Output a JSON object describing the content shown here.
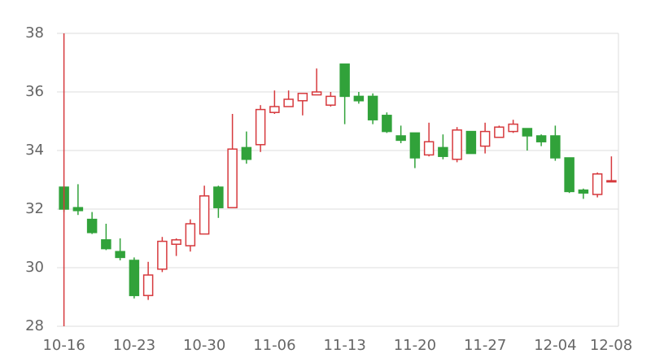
{
  "chart_data": {
    "type": "candlestick",
    "categories": [
      "10-16",
      null,
      null,
      null,
      null,
      "10-23",
      null,
      null,
      null,
      null,
      "10-30",
      null,
      null,
      null,
      null,
      "11-06",
      null,
      null,
      null,
      null,
      "11-13",
      null,
      null,
      null,
      null,
      "11-20",
      null,
      null,
      null,
      null,
      "11-27",
      null,
      null,
      null,
      null,
      "12-04",
      null,
      null,
      null,
      "12-08"
    ],
    "open": [
      32.75,
      32.05,
      31.65,
      30.95,
      30.55,
      30.25,
      29.05,
      29.95,
      30.8,
      30.75,
      31.15,
      32.75,
      32.05,
      34.1,
      34.2,
      35.3,
      35.5,
      35.7,
      35.9,
      35.55,
      36.95,
      35.85,
      35.85,
      35.2,
      34.5,
      34.6,
      33.85,
      34.1,
      33.7,
      34.65,
      34.15,
      34.45,
      34.65,
      34.75,
      34.5,
      34.5,
      33.75,
      32.65,
      32.5,
      32.95
    ],
    "close": [
      32.0,
      31.95,
      31.2,
      30.65,
      30.35,
      29.05,
      29.75,
      30.9,
      30.95,
      31.5,
      32.45,
      32.05,
      34.05,
      33.7,
      35.4,
      35.5,
      35.75,
      35.95,
      36.0,
      35.85,
      35.85,
      35.7,
      35.05,
      34.65,
      34.35,
      33.75,
      34.3,
      33.8,
      34.7,
      33.9,
      34.65,
      34.8,
      34.9,
      34.5,
      34.3,
      33.75,
      32.6,
      32.55,
      33.2,
      32.97
    ],
    "low": [
      31.9,
      31.8,
      31.15,
      30.6,
      30.25,
      28.95,
      28.9,
      29.85,
      30.4,
      30.55,
      31.15,
      31.7,
      32.05,
      33.55,
      33.95,
      35.25,
      35.5,
      35.2,
      35.9,
      35.5,
      34.9,
      35.6,
      34.9,
      34.6,
      34.25,
      33.4,
      33.8,
      33.7,
      33.6,
      33.9,
      33.9,
      34.45,
      34.6,
      34.0,
      34.15,
      33.65,
      32.55,
      32.35,
      32.4,
      32.95
    ],
    "high": [
      32.75,
      32.85,
      31.9,
      31.5,
      31.0,
      30.35,
      30.2,
      31.05,
      31.0,
      31.65,
      32.8,
      32.8,
      35.25,
      34.65,
      35.55,
      36.05,
      36.05,
      35.95,
      36.8,
      36.0,
      36.95,
      36.0,
      35.95,
      35.3,
      34.85,
      34.6,
      34.95,
      34.55,
      34.8,
      34.65,
      34.95,
      34.85,
      35.05,
      34.75,
      34.55,
      34.85,
      33.75,
      32.7,
      33.25,
      33.8
    ],
    "up_color": "#d6393d",
    "down_color": "#31a23a",
    "ylim": [
      28,
      38
    ],
    "yticks": [
      28,
      30,
      32,
      34,
      36,
      38
    ],
    "grid": true
  }
}
